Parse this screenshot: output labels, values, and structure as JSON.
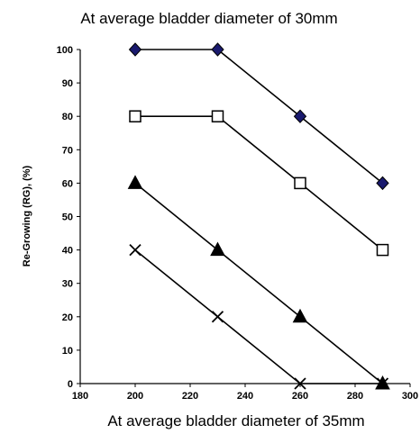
{
  "chart_data": {
    "type": "line",
    "title": "At average bladder diameter of 30mm",
    "xlabel": "At average bladder diameter of 35mm",
    "ylabel": "Re-Growing (RG), (%)",
    "xlim": [
      180,
      300
    ],
    "ylim": [
      0,
      100
    ],
    "xticks": [
      180,
      200,
      220,
      240,
      260,
      280,
      300
    ],
    "yticks": [
      0,
      10,
      20,
      30,
      40,
      50,
      60,
      70,
      80,
      90,
      100
    ],
    "grid": false,
    "legend": "none",
    "series": [
      {
        "marker": "diamond",
        "color": "#1a1a6e",
        "x": [
          200,
          230,
          260,
          290
        ],
        "y": [
          100,
          100,
          80,
          60
        ]
      },
      {
        "marker": "open-square",
        "color": "#000000",
        "x": [
          200,
          230,
          260,
          290
        ],
        "y": [
          80,
          80,
          60,
          40
        ]
      },
      {
        "marker": "triangle",
        "color": "#000000",
        "x": [
          200,
          230,
          260,
          290
        ],
        "y": [
          60,
          40,
          20,
          0
        ]
      },
      {
        "marker": "cross",
        "color": "#000000",
        "x": [
          200,
          230,
          260,
          290
        ],
        "y": [
          40,
          20,
          0,
          0
        ]
      }
    ]
  }
}
